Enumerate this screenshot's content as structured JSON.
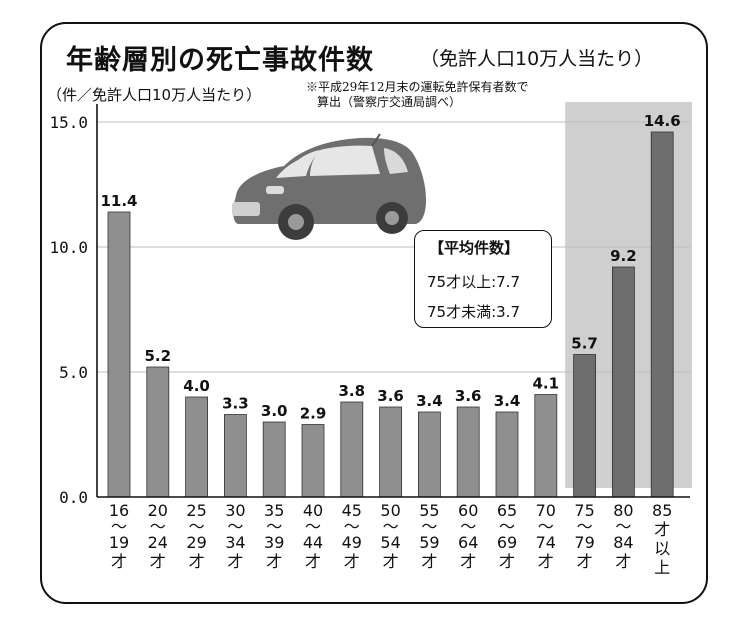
{
  "title": "年齢層別の死亡事故件数",
  "subtitle": "（免許人口10万人当たり）",
  "unit_label": "（件／免許人口10万人当たり）",
  "note": {
    "line1": "※平成29年12月末の運転免許保有者数で",
    "line2": "算出（警察庁交通局調べ）"
  },
  "average_box": {
    "title": "【平均件数】",
    "row1": "75才以上:7.7",
    "row2": "75才未満:3.7"
  },
  "colors": {
    "bar_under75": "#8f8f8f",
    "bar_over75": "#6e6e6e",
    "highlight_band": "#cfcfcf",
    "grid": "#bdbdbd"
  },
  "chart_data": {
    "type": "bar",
    "categories": [
      [
        "16",
        "〜",
        "19",
        "才"
      ],
      [
        "20",
        "〜",
        "24",
        "才"
      ],
      [
        "25",
        "〜",
        "29",
        "才"
      ],
      [
        "30",
        "〜",
        "34",
        "才"
      ],
      [
        "35",
        "〜",
        "39",
        "才"
      ],
      [
        "40",
        "〜",
        "44",
        "才"
      ],
      [
        "45",
        "〜",
        "49",
        "才"
      ],
      [
        "50",
        "〜",
        "54",
        "才"
      ],
      [
        "55",
        "〜",
        "59",
        "才"
      ],
      [
        "60",
        "〜",
        "64",
        "才"
      ],
      [
        "65",
        "〜",
        "69",
        "才"
      ],
      [
        "70",
        "〜",
        "74",
        "才"
      ],
      [
        "75",
        "〜",
        "79",
        "才"
      ],
      [
        "80",
        "〜",
        "84",
        "才"
      ],
      [
        "85",
        "才",
        "以",
        "上"
      ]
    ],
    "values": [
      11.4,
      5.2,
      4.0,
      3.3,
      3.0,
      2.9,
      3.8,
      3.6,
      3.4,
      3.6,
      3.4,
      4.1,
      5.7,
      9.2,
      14.6
    ],
    "value_labels": [
      "11.4",
      "5.2",
      "4.0",
      "3.3",
      "3.0",
      "2.9",
      "3.8",
      "3.6",
      "3.4",
      "3.6",
      "3.4",
      "4.1",
      "5.7",
      "9.2",
      "14.6"
    ],
    "y_ticks": [
      "0.0",
      "5.0",
      "10.0",
      "15.0"
    ],
    "y_tick_values": [
      0,
      5,
      10,
      15
    ],
    "ylim": [
      0,
      15
    ],
    "grid": true,
    "highlight_categories": [
      "75〜79才",
      "80〜84才",
      "85才以上"
    ]
  }
}
